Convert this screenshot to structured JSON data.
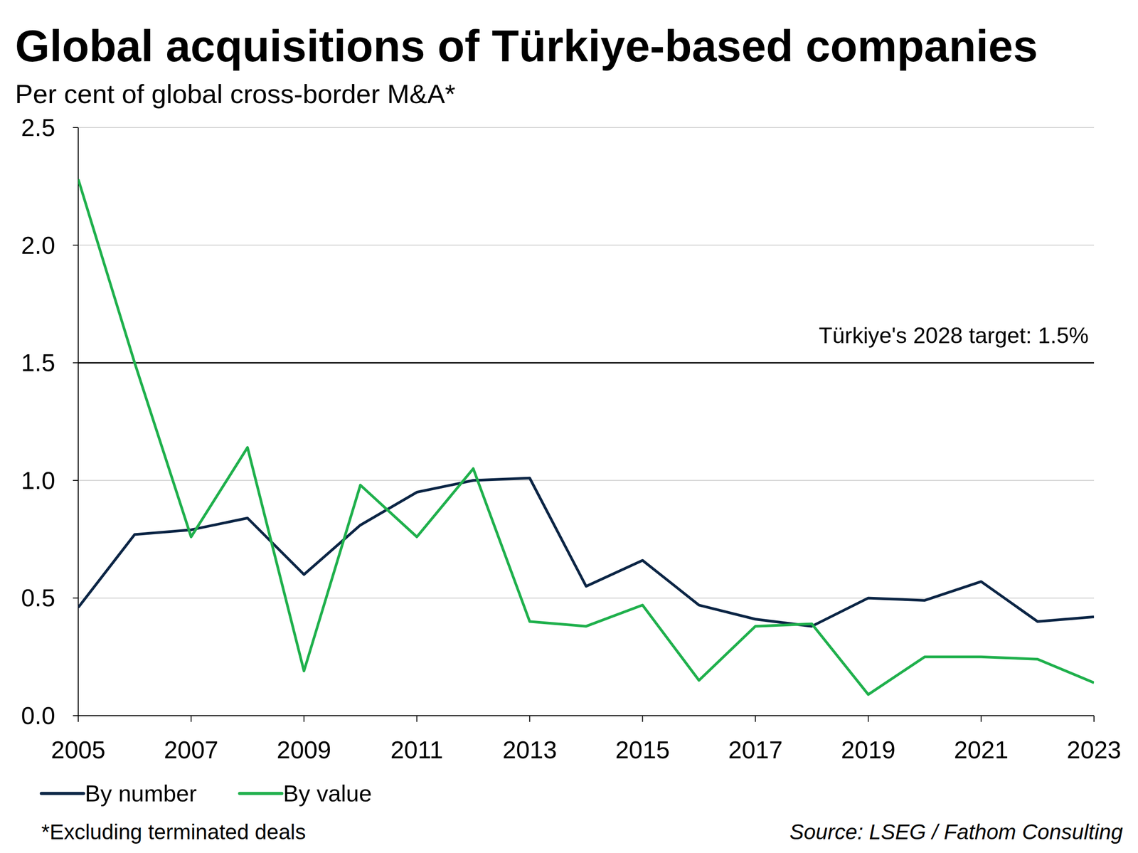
{
  "chart_data": {
    "type": "line",
    "title": "Global acquisitions of Türkiye-based companies",
    "subtitle": "Per cent of global cross-border M&A*",
    "x": [
      2005,
      2006,
      2007,
      2008,
      2009,
      2010,
      2011,
      2012,
      2013,
      2014,
      2015,
      2016,
      2017,
      2018,
      2019,
      2020,
      2021,
      2022,
      2023
    ],
    "series": [
      {
        "name": "By number",
        "color": "#0b2545",
        "values": [
          0.46,
          0.77,
          0.79,
          0.84,
          0.6,
          0.81,
          0.95,
          1.0,
          1.01,
          0.55,
          0.66,
          0.47,
          0.41,
          0.38,
          0.5,
          0.49,
          0.57,
          0.4,
          0.42
        ]
      },
      {
        "name": "By value",
        "color": "#1fb04c",
        "values": [
          2.28,
          1.5,
          0.76,
          1.14,
          0.19,
          0.98,
          0.76,
          1.05,
          0.4,
          0.38,
          0.47,
          0.15,
          0.38,
          0.39,
          0.09,
          0.25,
          0.25,
          0.24,
          0.14
        ]
      }
    ],
    "xlim": [
      2005,
      2023
    ],
    "xticks": [
      2005,
      2007,
      2009,
      2011,
      2013,
      2015,
      2017,
      2019,
      2021,
      2023
    ],
    "ylim": [
      0,
      2.5
    ],
    "yticks": [
      {
        "value": 0,
        "label": "0.0"
      },
      0.5,
      {
        "value": 1,
        "label": "1.0"
      },
      1.5,
      {
        "value": 2,
        "label": "2.0"
      },
      2.5
    ],
    "grid": true,
    "legend": "bottom",
    "annotations": [
      {
        "text": "Türkiye's 2028 target: 1.5%",
        "y": 1.5,
        "color": "#000000"
      }
    ],
    "footnote": "*Excluding terminated deals",
    "source": "Source: LSEG / Fathom Consulting"
  }
}
